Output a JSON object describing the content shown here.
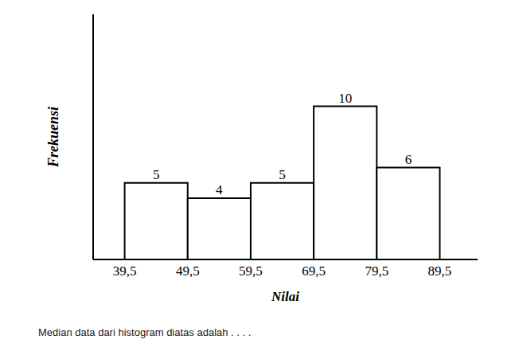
{
  "chart_data": {
    "type": "histogram",
    "title": "Median data dari histogram diatas adalah . . . .",
    "x_label": "Nilai",
    "y_label": "Frekuensi",
    "bins": [
      39.5,
      49.5,
      59.5,
      69.5,
      79.5,
      89.5
    ],
    "values": [
      5,
      4,
      5,
      10,
      6
    ],
    "xlim": [
      34.5,
      95.5
    ],
    "xticks": [
      {
        "value": 39.5,
        "label": "39,5"
      },
      {
        "value": 49.5,
        "label": "49,5"
      },
      {
        "value": 59.5,
        "label": "59,5"
      },
      {
        "value": 69.5,
        "label": "69,5"
      },
      {
        "value": 79.5,
        "label": "79,5"
      },
      {
        "value": 89.5,
        "label": "89,5"
      }
    ],
    "ylim": [
      0,
      16
    ],
    "yticks": [],
    "tick_labels": "x",
    "data_labels": true,
    "grid": false,
    "color": "#ffffff"
  }
}
